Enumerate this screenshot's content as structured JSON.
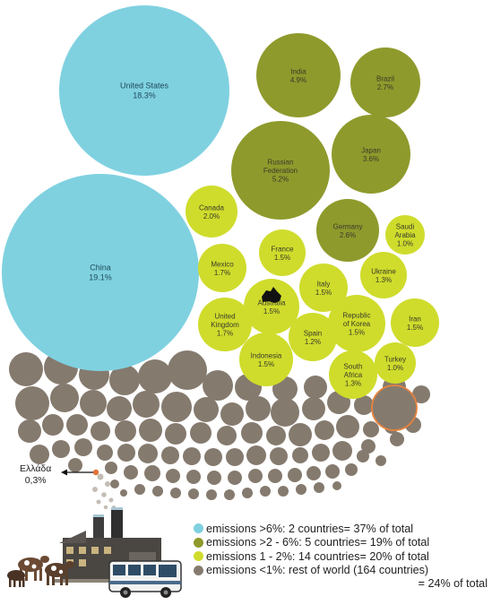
{
  "chart_data": {
    "type": "bubble",
    "groups": [
      {
        "key": "g1",
        "color": "#7fd1e0",
        "legend": "emissions >6%: 2 countries= 37% of total"
      },
      {
        "key": "g2",
        "color": "#8f9a2c",
        "legend": "emissions >2 - 6%: 5 countries= 19% of total"
      },
      {
        "key": "g3",
        "color": "#cfdc2c",
        "legend": "emissions 1 - 2%: 14 countries= 20% of total"
      },
      {
        "key": "g4",
        "color": "#857a6e",
        "legend": "emissions <1%: rest of world (164 countries)",
        "legend_extra": "= 24% of total"
      }
    ],
    "countries": [
      {
        "name": "United States",
        "value": "18.3%",
        "group": "g1"
      },
      {
        "name": "China",
        "value": "19.1%",
        "group": "g1"
      },
      {
        "name": "India",
        "value": "4.9%",
        "group": "g2"
      },
      {
        "name": "Brazil",
        "value": "2.7%",
        "group": "g2"
      },
      {
        "name": "Russian Federation",
        "value": "5.2%",
        "group": "g2"
      },
      {
        "name": "Japan",
        "value": "3.6%",
        "group": "g2"
      },
      {
        "name": "Germany",
        "value": "2.6%",
        "group": "g2"
      },
      {
        "name": "Canada",
        "value": "2.0%",
        "group": "g3"
      },
      {
        "name": "Saudi Arabia",
        "value": "1.0%",
        "group": "g3"
      },
      {
        "name": "France",
        "value": "1.5%",
        "group": "g3"
      },
      {
        "name": "Mexico",
        "value": "1.7%",
        "group": "g3"
      },
      {
        "name": "Ukraine",
        "value": "1.3%",
        "group": "g3"
      },
      {
        "name": "Italy",
        "value": "1.5%",
        "group": "g3"
      },
      {
        "name": "Australia",
        "value": "1.5%",
        "group": "g3"
      },
      {
        "name": "Republic of Korea",
        "value": "1.5%",
        "group": "g3"
      },
      {
        "name": "Iran",
        "value": "1.5%",
        "group": "g3"
      },
      {
        "name": "United Kingdom",
        "value": "1.7%",
        "group": "g3"
      },
      {
        "name": "Spain",
        "value": "1.2%",
        "group": "g3"
      },
      {
        "name": "Indonesia",
        "value": "1.5%",
        "group": "g3"
      },
      {
        "name": "South Africa",
        "value": "1.3%",
        "group": "g3"
      },
      {
        "name": "Turkey",
        "value": "1.0%",
        "group": "g3"
      }
    ],
    "rest_of_world_count": 164,
    "highlight": {
      "name": "Ελλάδα",
      "value": "0,3%",
      "color": "#e0733a"
    }
  }
}
